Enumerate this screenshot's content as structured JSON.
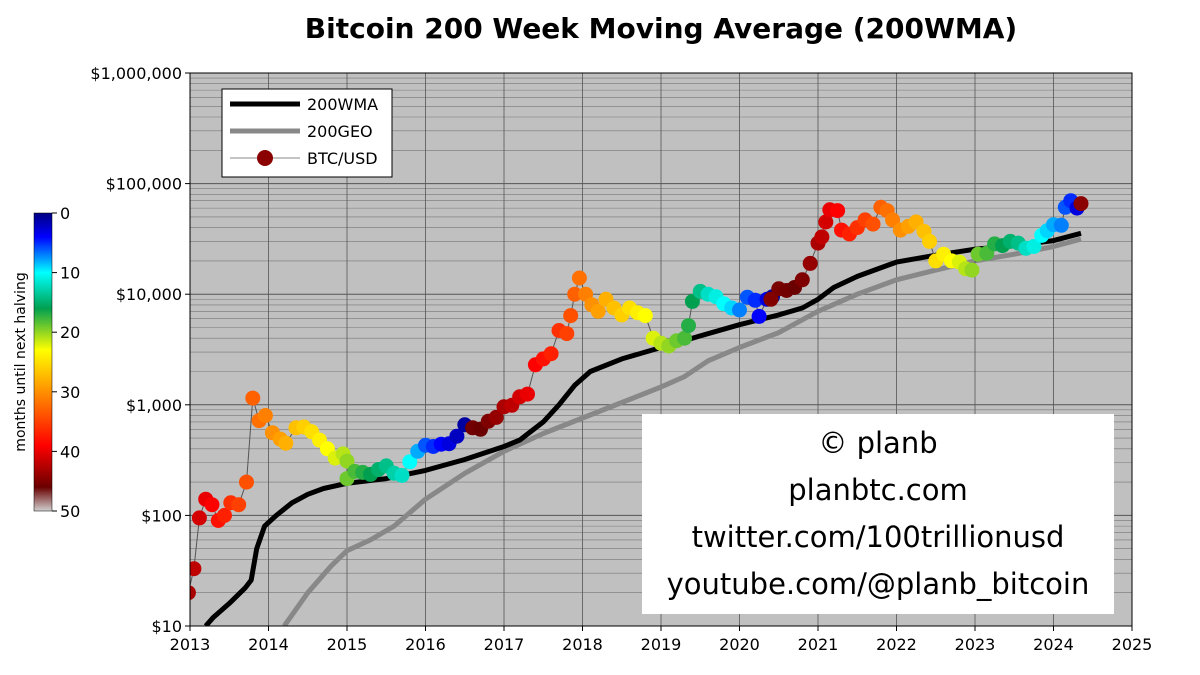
{
  "chart_data": {
    "type": "line+scatter",
    "title": "Bitcoin 200 Week Moving Average (200WMA)",
    "x_ticks": [
      "2013",
      "2014",
      "2015",
      "2016",
      "2017",
      "2018",
      "2019",
      "2020",
      "2021",
      "2022",
      "2023",
      "2024",
      "2025"
    ],
    "xlim": [
      2013,
      2025
    ],
    "y_scale": "log",
    "ylim": [
      10,
      1000000
    ],
    "y_ticks": [
      {
        "value": 10,
        "label": "$10"
      },
      {
        "value": 100,
        "label": "$100"
      },
      {
        "value": 1000,
        "label": "$1,000"
      },
      {
        "value": 10000,
        "label": "$10,000"
      },
      {
        "value": 100000,
        "label": "$100,000"
      },
      {
        "value": 1000000,
        "label": "$1,000,000"
      }
    ],
    "grid": true,
    "legend": {
      "placement": "top-left",
      "entries": [
        {
          "name": "200WMA",
          "color": "#000000",
          "style": "line"
        },
        {
          "name": "200GEO",
          "color": "#888888",
          "style": "line"
        },
        {
          "name": "BTC/USD",
          "color": "#8b0000",
          "style": "marker"
        }
      ]
    },
    "colorbar": {
      "title": "months until next halving",
      "ticks": [
        0,
        10,
        20,
        30,
        40,
        50
      ],
      "range": [
        0,
        50
      ]
    },
    "series": [
      {
        "name": "200WMA",
        "color": "#000000",
        "points": [
          [
            2013.2,
            10
          ],
          [
            2013.3,
            12
          ],
          [
            2013.5,
            16
          ],
          [
            2013.7,
            22
          ],
          [
            2013.78,
            26
          ],
          [
            2013.85,
            50
          ],
          [
            2013.95,
            80
          ],
          [
            2014.1,
            100
          ],
          [
            2014.3,
            130
          ],
          [
            2014.5,
            155
          ],
          [
            2014.7,
            175
          ],
          [
            2015.0,
            195
          ],
          [
            2015.5,
            215
          ],
          [
            2016.0,
            255
          ],
          [
            2016.5,
            320
          ],
          [
            2017.0,
            420
          ],
          [
            2017.2,
            480
          ],
          [
            2017.5,
            700
          ],
          [
            2017.7,
            1000
          ],
          [
            2017.9,
            1500
          ],
          [
            2018.1,
            2000
          ],
          [
            2018.5,
            2600
          ],
          [
            2019.0,
            3300
          ],
          [
            2019.5,
            4200
          ],
          [
            2020.0,
            5300
          ],
          [
            2020.5,
            6500
          ],
          [
            2020.8,
            7500
          ],
          [
            2021.0,
            9000
          ],
          [
            2021.2,
            11500
          ],
          [
            2021.5,
            14500
          ],
          [
            2022.0,
            19500
          ],
          [
            2022.5,
            22500
          ],
          [
            2023.0,
            25500
          ],
          [
            2023.5,
            27500
          ],
          [
            2024.0,
            30500
          ],
          [
            2024.35,
            35500
          ]
        ]
      },
      {
        "name": "200GEO",
        "color": "#888888",
        "points": [
          [
            2014.2,
            10
          ],
          [
            2014.5,
            20
          ],
          [
            2014.8,
            35
          ],
          [
            2015.0,
            48
          ],
          [
            2015.3,
            60
          ],
          [
            2015.6,
            80
          ],
          [
            2016.0,
            140
          ],
          [
            2016.5,
            240
          ],
          [
            2017.0,
            380
          ],
          [
            2017.5,
            550
          ],
          [
            2018.0,
            760
          ],
          [
            2018.5,
            1050
          ],
          [
            2019.0,
            1450
          ],
          [
            2019.3,
            1800
          ],
          [
            2019.6,
            2500
          ],
          [
            2020.0,
            3300
          ],
          [
            2020.5,
            4500
          ],
          [
            2021.0,
            7000
          ],
          [
            2021.5,
            10000
          ],
          [
            2022.0,
            13500
          ],
          [
            2022.5,
            16500
          ],
          [
            2023.0,
            20000
          ],
          [
            2023.5,
            23000
          ],
          [
            2024.0,
            27000
          ],
          [
            2024.35,
            31500
          ]
        ]
      },
      {
        "name": "BTC/USD",
        "color": "#8b0000",
        "points": [
          [
            2012.98,
            20,
            43
          ],
          [
            2013.05,
            33,
            42
          ],
          [
            2013.12,
            95,
            41
          ],
          [
            2013.2,
            140,
            40
          ],
          [
            2013.28,
            125,
            39
          ],
          [
            2013.36,
            90,
            38
          ],
          [
            2013.44,
            100,
            37
          ],
          [
            2013.52,
            130,
            36
          ],
          [
            2013.62,
            125,
            35
          ],
          [
            2013.72,
            200,
            34
          ],
          [
            2013.8,
            1150,
            33
          ],
          [
            2013.88,
            720,
            32
          ],
          [
            2013.96,
            800,
            31
          ],
          [
            2014.05,
            560,
            30
          ],
          [
            2014.15,
            490,
            29
          ],
          [
            2014.22,
            450,
            28
          ],
          [
            2014.35,
            620,
            27
          ],
          [
            2014.45,
            630,
            26
          ],
          [
            2014.55,
            570,
            25
          ],
          [
            2014.65,
            480,
            24
          ],
          [
            2014.75,
            400,
            23
          ],
          [
            2014.85,
            330,
            22
          ],
          [
            2014.95,
            360,
            21
          ],
          [
            2015.0,
            310,
            20
          ],
          [
            2015.0,
            215,
            19
          ],
          [
            2015.1,
            250,
            18
          ],
          [
            2015.2,
            245,
            17
          ],
          [
            2015.3,
            235,
            16
          ],
          [
            2015.4,
            260,
            15
          ],
          [
            2015.5,
            280,
            14
          ],
          [
            2015.6,
            240,
            13
          ],
          [
            2015.7,
            230,
            12
          ],
          [
            2015.8,
            305,
            10
          ],
          [
            2015.9,
            380,
            8
          ],
          [
            2016.0,
            430,
            6
          ],
          [
            2016.1,
            420,
            5
          ],
          [
            2016.2,
            440,
            4
          ],
          [
            2016.3,
            445,
            3
          ],
          [
            2016.4,
            520,
            2
          ],
          [
            2016.5,
            660,
            1
          ],
          [
            2016.6,
            620,
            47
          ],
          [
            2016.7,
            600,
            46
          ],
          [
            2016.8,
            710,
            45
          ],
          [
            2016.9,
            770,
            44
          ],
          [
            2017.0,
            960,
            43
          ],
          [
            2017.1,
            990,
            42
          ],
          [
            2017.2,
            1180,
            41
          ],
          [
            2017.3,
            1250,
            40
          ],
          [
            2017.4,
            2300,
            39
          ],
          [
            2017.5,
            2600,
            38
          ],
          [
            2017.6,
            2900,
            37
          ],
          [
            2017.7,
            4700,
            36
          ],
          [
            2017.8,
            4400,
            35
          ],
          [
            2017.85,
            6400,
            34
          ],
          [
            2017.9,
            10000,
            33
          ],
          [
            2017.96,
            14000,
            32
          ],
          [
            2018.04,
            10000,
            31
          ],
          [
            2018.12,
            8000,
            30
          ],
          [
            2018.2,
            7000,
            29
          ],
          [
            2018.3,
            9000,
            28
          ],
          [
            2018.4,
            7500,
            27
          ],
          [
            2018.5,
            6500,
            26
          ],
          [
            2018.6,
            7500,
            25
          ],
          [
            2018.7,
            6800,
            24
          ],
          [
            2018.8,
            6400,
            23
          ],
          [
            2018.9,
            4000,
            22
          ],
          [
            2019.0,
            3600,
            21
          ],
          [
            2019.1,
            3400,
            20
          ],
          [
            2019.2,
            3800,
            19
          ],
          [
            2019.3,
            4000,
            18
          ],
          [
            2019.35,
            5200,
            17
          ],
          [
            2019.4,
            8600,
            16
          ],
          [
            2019.5,
            10600,
            14
          ],
          [
            2019.6,
            10000,
            12
          ],
          [
            2019.7,
            9500,
            11
          ],
          [
            2019.8,
            8200,
            10
          ],
          [
            2019.9,
            7500,
            9
          ],
          [
            2020.0,
            7200,
            7
          ],
          [
            2020.1,
            9400,
            6
          ],
          [
            2020.2,
            8800,
            5
          ],
          [
            2020.25,
            6300,
            4
          ],
          [
            2020.35,
            9000,
            3
          ],
          [
            2020.42,
            9500,
            1
          ],
          [
            2020.4,
            9000,
            49
          ],
          [
            2020.5,
            11200,
            48
          ],
          [
            2020.6,
            10800,
            47
          ],
          [
            2020.7,
            11500,
            46
          ],
          [
            2020.8,
            13500,
            45
          ],
          [
            2020.9,
            19000,
            44
          ],
          [
            2021.0,
            29000,
            43
          ],
          [
            2021.05,
            33000,
            42
          ],
          [
            2021.1,
            45000,
            41
          ],
          [
            2021.15,
            58000,
            40
          ],
          [
            2021.25,
            57000,
            39
          ],
          [
            2021.3,
            38000,
            38
          ],
          [
            2021.4,
            35000,
            37
          ],
          [
            2021.5,
            40000,
            36
          ],
          [
            2021.6,
            47000,
            35
          ],
          [
            2021.7,
            43000,
            34
          ],
          [
            2021.8,
            61000,
            33
          ],
          [
            2021.88,
            57000,
            32
          ],
          [
            2021.95,
            47000,
            31
          ],
          [
            2022.05,
            38000,
            30
          ],
          [
            2022.15,
            41000,
            29
          ],
          [
            2022.25,
            45000,
            28
          ],
          [
            2022.35,
            37000,
            27
          ],
          [
            2022.42,
            30000,
            26
          ],
          [
            2022.5,
            20000,
            25
          ],
          [
            2022.6,
            23000,
            24
          ],
          [
            2022.7,
            20000,
            23
          ],
          [
            2022.8,
            19500,
            22
          ],
          [
            2022.88,
            17000,
            21
          ],
          [
            2022.96,
            16500,
            20
          ],
          [
            2023.04,
            23000,
            19
          ],
          [
            2023.15,
            23500,
            18
          ],
          [
            2023.25,
            28500,
            17
          ],
          [
            2023.35,
            27500,
            16
          ],
          [
            2023.45,
            30000,
            15
          ],
          [
            2023.55,
            29000,
            14
          ],
          [
            2023.65,
            26000,
            12
          ],
          [
            2023.75,
            27000,
            11
          ],
          [
            2023.85,
            34000,
            10
          ],
          [
            2023.92,
            37500,
            9
          ],
          [
            2024.0,
            42500,
            8
          ],
          [
            2024.1,
            42000,
            7
          ],
          [
            2024.15,
            61000,
            6
          ],
          [
            2024.22,
            70000,
            5
          ],
          [
            2024.3,
            60000,
            3
          ],
          [
            2024.35,
            66000,
            50
          ]
        ]
      }
    ]
  },
  "credit": {
    "line1": "© planb",
    "line2": "planbtc.com",
    "line3": "twitter.com/100trillionusd",
    "line4": "youtube.com/@planb_bitcoin"
  }
}
